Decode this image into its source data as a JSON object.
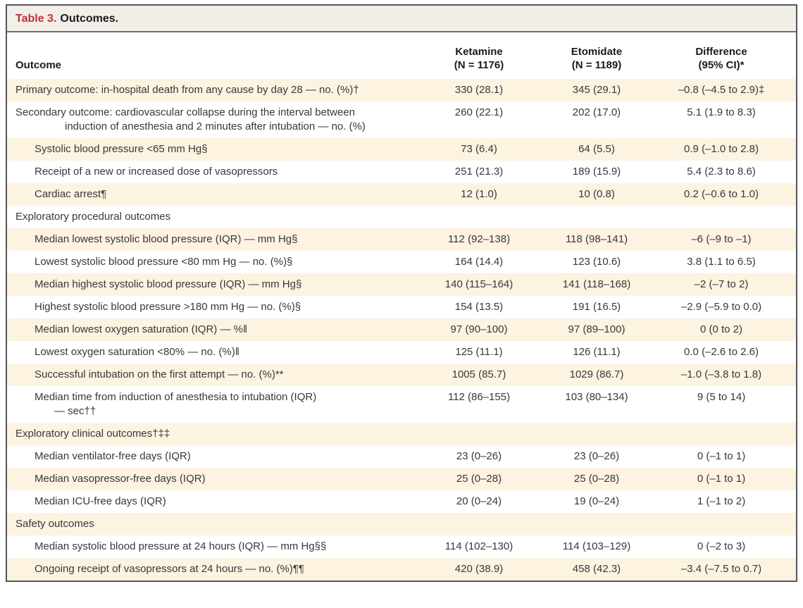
{
  "table": {
    "title_label": "Table 3.",
    "title_caption": "Outcomes.",
    "columns": {
      "outcome": "Outcome",
      "ketamine_line1": "Ketamine",
      "ketamine_line2": "(N = 1176)",
      "etomidate_line1": "Etomidate",
      "etomidate_line2": "(N = 1189)",
      "difference_line1": "Difference",
      "difference_line2": "(95% CI)*"
    },
    "rows": [
      {
        "label": "Primary outcome: in-hospital death from any cause by day 28 — no. (%)†",
        "indent": 0,
        "section": false,
        "ketamine": "330 (28.1)",
        "etomidate": "345 (29.1)",
        "difference": "–0.8 (–4.5 to 2.9)‡"
      },
      {
        "label": "Secondary outcome: cardiovascular collapse during the interval between",
        "label2": "induction of anesthesia and 2 minutes after intubation — no. (%)",
        "indent": 0,
        "section": false,
        "ketamine": "260 (22.1)",
        "etomidate": "202 (17.0)",
        "difference": "5.1 (1.9 to 8.3)"
      },
      {
        "label": "Systolic blood pressure <65 mm Hg§",
        "indent": 1,
        "section": false,
        "ketamine": "73 (6.4)",
        "etomidate": "64 (5.5)",
        "difference": "0.9 (–1.0 to 2.8)"
      },
      {
        "label": "Receipt of a new or increased dose of vasopressors",
        "indent": 1,
        "section": false,
        "ketamine": "251 (21.3)",
        "etomidate": "189 (15.9)",
        "difference": "5.4 (2.3 to 8.6)"
      },
      {
        "label": "Cardiac arrest¶",
        "indent": 1,
        "section": false,
        "ketamine": "12 (1.0)",
        "etomidate": "10 (0.8)",
        "difference": "0.2 (–0.6 to 1.0)"
      },
      {
        "label": "Exploratory procedural outcomes",
        "indent": 0,
        "section": true,
        "ketamine": "",
        "etomidate": "",
        "difference": ""
      },
      {
        "label": "Median lowest systolic blood pressure (IQR) — mm Hg§",
        "indent": 1,
        "section": false,
        "ketamine": "112 (92–138)",
        "etomidate": "118 (98–141)",
        "difference": "–6 (–9 to –1)"
      },
      {
        "label": "Lowest systolic blood pressure <80 mm Hg — no. (%)§",
        "indent": 1,
        "section": false,
        "ketamine": "164 (14.4)",
        "etomidate": "123 (10.6)",
        "difference": "3.8 (1.1 to 6.5)"
      },
      {
        "label": "Median highest systolic blood pressure (IQR) — mm Hg§",
        "indent": 1,
        "section": false,
        "ketamine": "140 (115–164)",
        "etomidate": "141 (118–168)",
        "difference": "–2 (–7 to 2)"
      },
      {
        "label": "Highest systolic blood pressure >180 mm Hg — no. (%)§",
        "indent": 1,
        "section": false,
        "ketamine": "154 (13.5)",
        "etomidate": "191 (16.5)",
        "difference": "–2.9 (–5.9 to 0.0)"
      },
      {
        "label": "Median lowest oxygen saturation (IQR) — %‖",
        "indent": 1,
        "section": false,
        "ketamine": "97 (90–100)",
        "etomidate": "97 (89–100)",
        "difference": "0 (0 to 2)"
      },
      {
        "label": "Lowest oxygen saturation <80% — no. (%)‖",
        "indent": 1,
        "section": false,
        "ketamine": "125 (11.1)",
        "etomidate": "126 (11.1)",
        "difference": "0.0 (–2.6 to 2.6)"
      },
      {
        "label": "Successful intubation on the first attempt — no. (%)**",
        "indent": 1,
        "section": false,
        "ketamine": "1005 (85.7)",
        "etomidate": "1029 (86.7)",
        "difference": "–1.0 (–3.8 to 1.8)"
      },
      {
        "label": "Median time from induction of anesthesia to intubation (IQR)",
        "label2": "— sec††",
        "indent": 1,
        "section": false,
        "ketamine": "112 (86–155)",
        "etomidate": "103 (80–134)",
        "difference": "9 (5 to 14)"
      },
      {
        "label": "Exploratory clinical outcomes†‡‡",
        "indent": 0,
        "section": true,
        "ketamine": "",
        "etomidate": "",
        "difference": ""
      },
      {
        "label": "Median ventilator-free days (IQR)",
        "indent": 1,
        "section": false,
        "ketamine": "23 (0–26)",
        "etomidate": "23 (0–26)",
        "difference": "0 (–1 to 1)"
      },
      {
        "label": "Median vasopressor-free days (IQR)",
        "indent": 1,
        "section": false,
        "ketamine": "25 (0–28)",
        "etomidate": "25 (0–28)",
        "difference": "0 (–1 to 1)"
      },
      {
        "label": "Median ICU-free days (IQR)",
        "indent": 1,
        "section": false,
        "ketamine": "20 (0–24)",
        "etomidate": "19 (0–24)",
        "difference": "1 (–1 to 2)"
      },
      {
        "label": "Safety outcomes",
        "indent": 0,
        "section": true,
        "ketamine": "",
        "etomidate": "",
        "difference": ""
      },
      {
        "label": "Median systolic blood pressure at 24 hours (IQR) — mm Hg§§",
        "indent": 1,
        "section": false,
        "ketamine": "114 (102–130)",
        "etomidate": "114 (103–129)",
        "difference": "0 (–2 to 3)"
      },
      {
        "label": "Ongoing receipt of vasopressors at 24 hours — no. (%)¶¶",
        "indent": 1,
        "section": false,
        "ketamine": "420 (38.9)",
        "etomidate": "458 (42.3)",
        "difference": "–3.4 (–7.5 to 0.7)"
      }
    ]
  },
  "colors": {
    "stripe": "#fcf3e1",
    "title_bar_bg": "#f2efe8",
    "accent_red": "#bf3137",
    "border": "#55555a",
    "text": "#38383b"
  }
}
